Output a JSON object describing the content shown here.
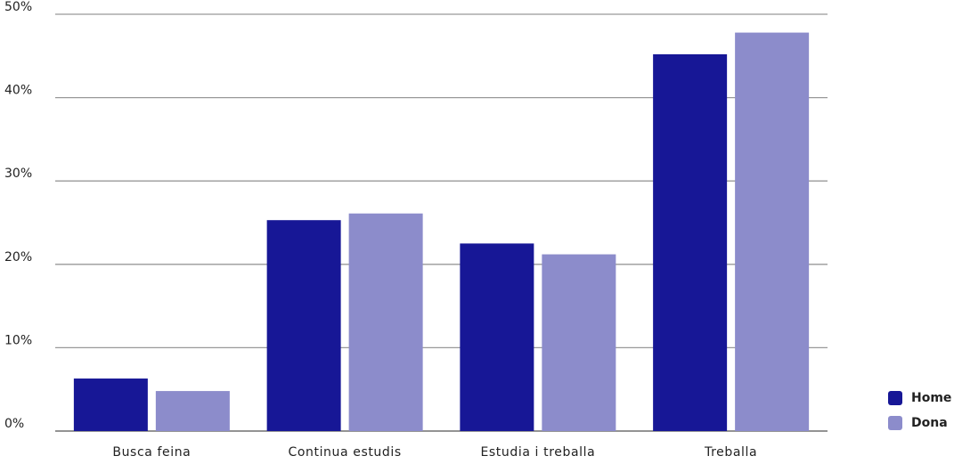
{
  "chart_data": {
    "type": "bar",
    "title": "",
    "xlabel": "",
    "ylabel": "",
    "categories": [
      "Busca feina",
      "Continua estudis",
      "Estudia i treballa",
      "Treballa"
    ],
    "series": [
      {
        "name": "Home",
        "color": "#171796",
        "values": [
          6.3,
          25.3,
          22.5,
          45.2
        ]
      },
      {
        "name": "Dona",
        "color": "#8C8CCB",
        "values": [
          4.8,
          26.1,
          21.2,
          47.8
        ]
      }
    ],
    "ylim": [
      0,
      50
    ],
    "yticks": [
      0,
      10,
      20,
      30,
      40,
      50
    ],
    "ytick_labels": [
      "0%",
      "10%",
      "20%",
      "30%",
      "40%",
      "50%"
    ],
    "grid": true,
    "legend_position": "bottom-right"
  }
}
